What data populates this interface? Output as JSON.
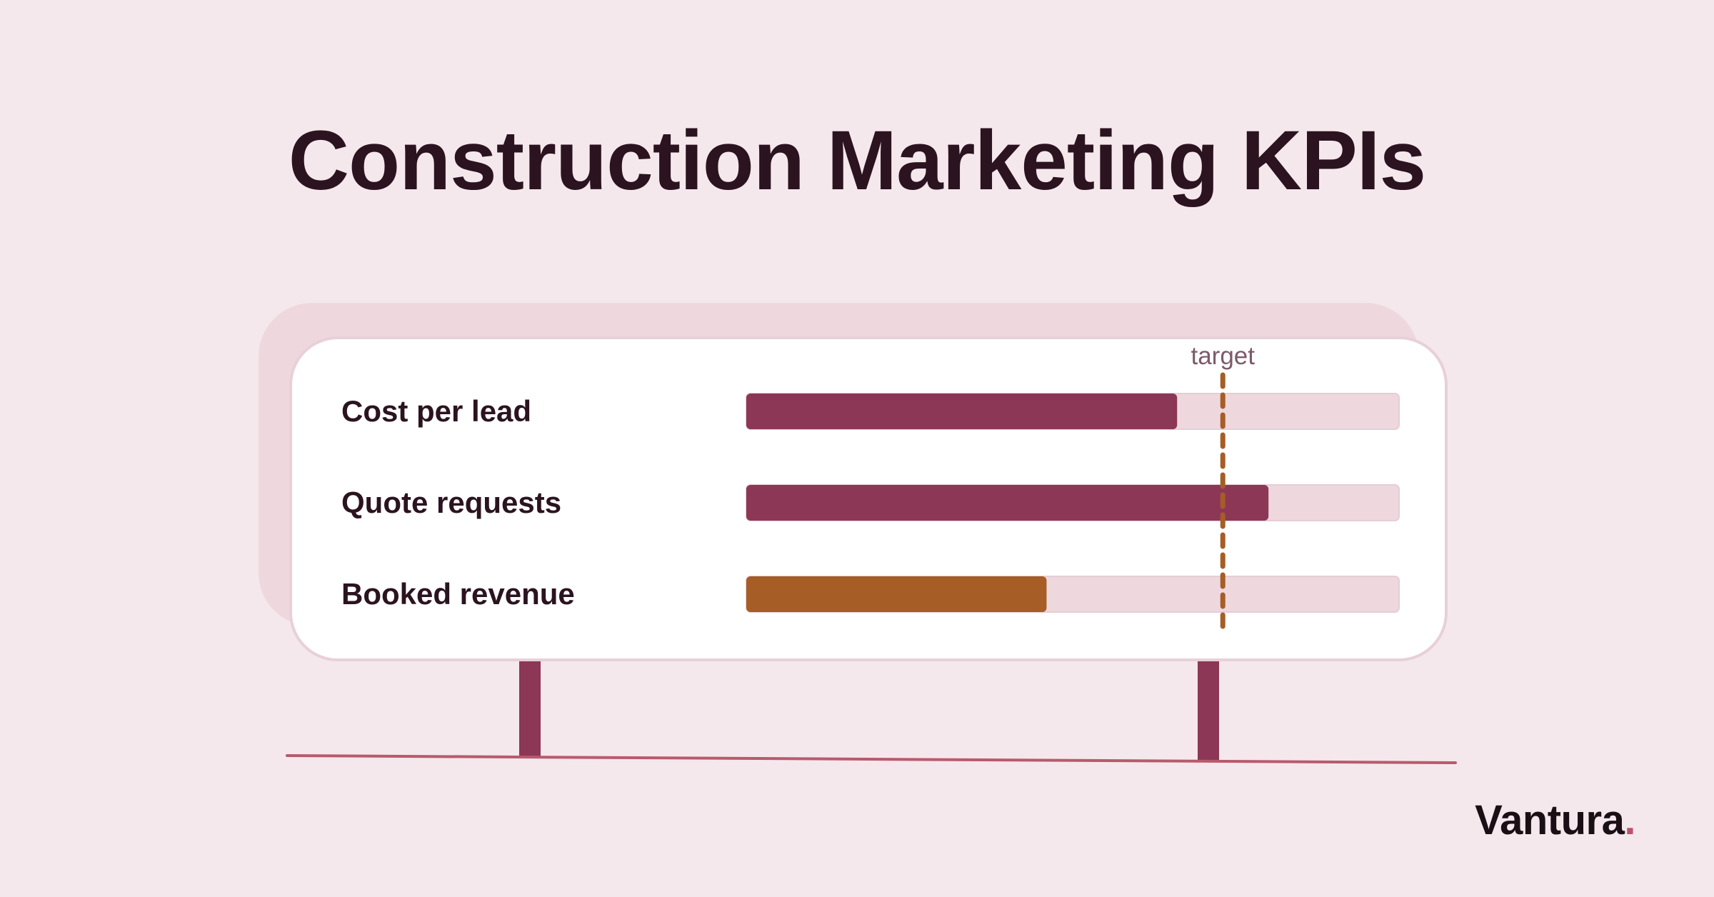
{
  "chart_data": {
    "type": "bar",
    "orientation": "horizontal",
    "title": "Construction Marketing KPIs",
    "categories": [
      "Cost per lead",
      "Quote requests",
      "Booked revenue"
    ],
    "values": [
      66,
      80,
      46
    ],
    "xlim": [
      0,
      100
    ],
    "target": {
      "label": "target",
      "value": 73
    },
    "bar_colors": [
      "#8c3756",
      "#8c3756",
      "#a65d26"
    ],
    "track_color": "#eed8de",
    "target_color": "#a65d26",
    "grid": false
  },
  "brand": {
    "name": "Vantura",
    "dot": ".",
    "dot_color": "#c0506c"
  }
}
